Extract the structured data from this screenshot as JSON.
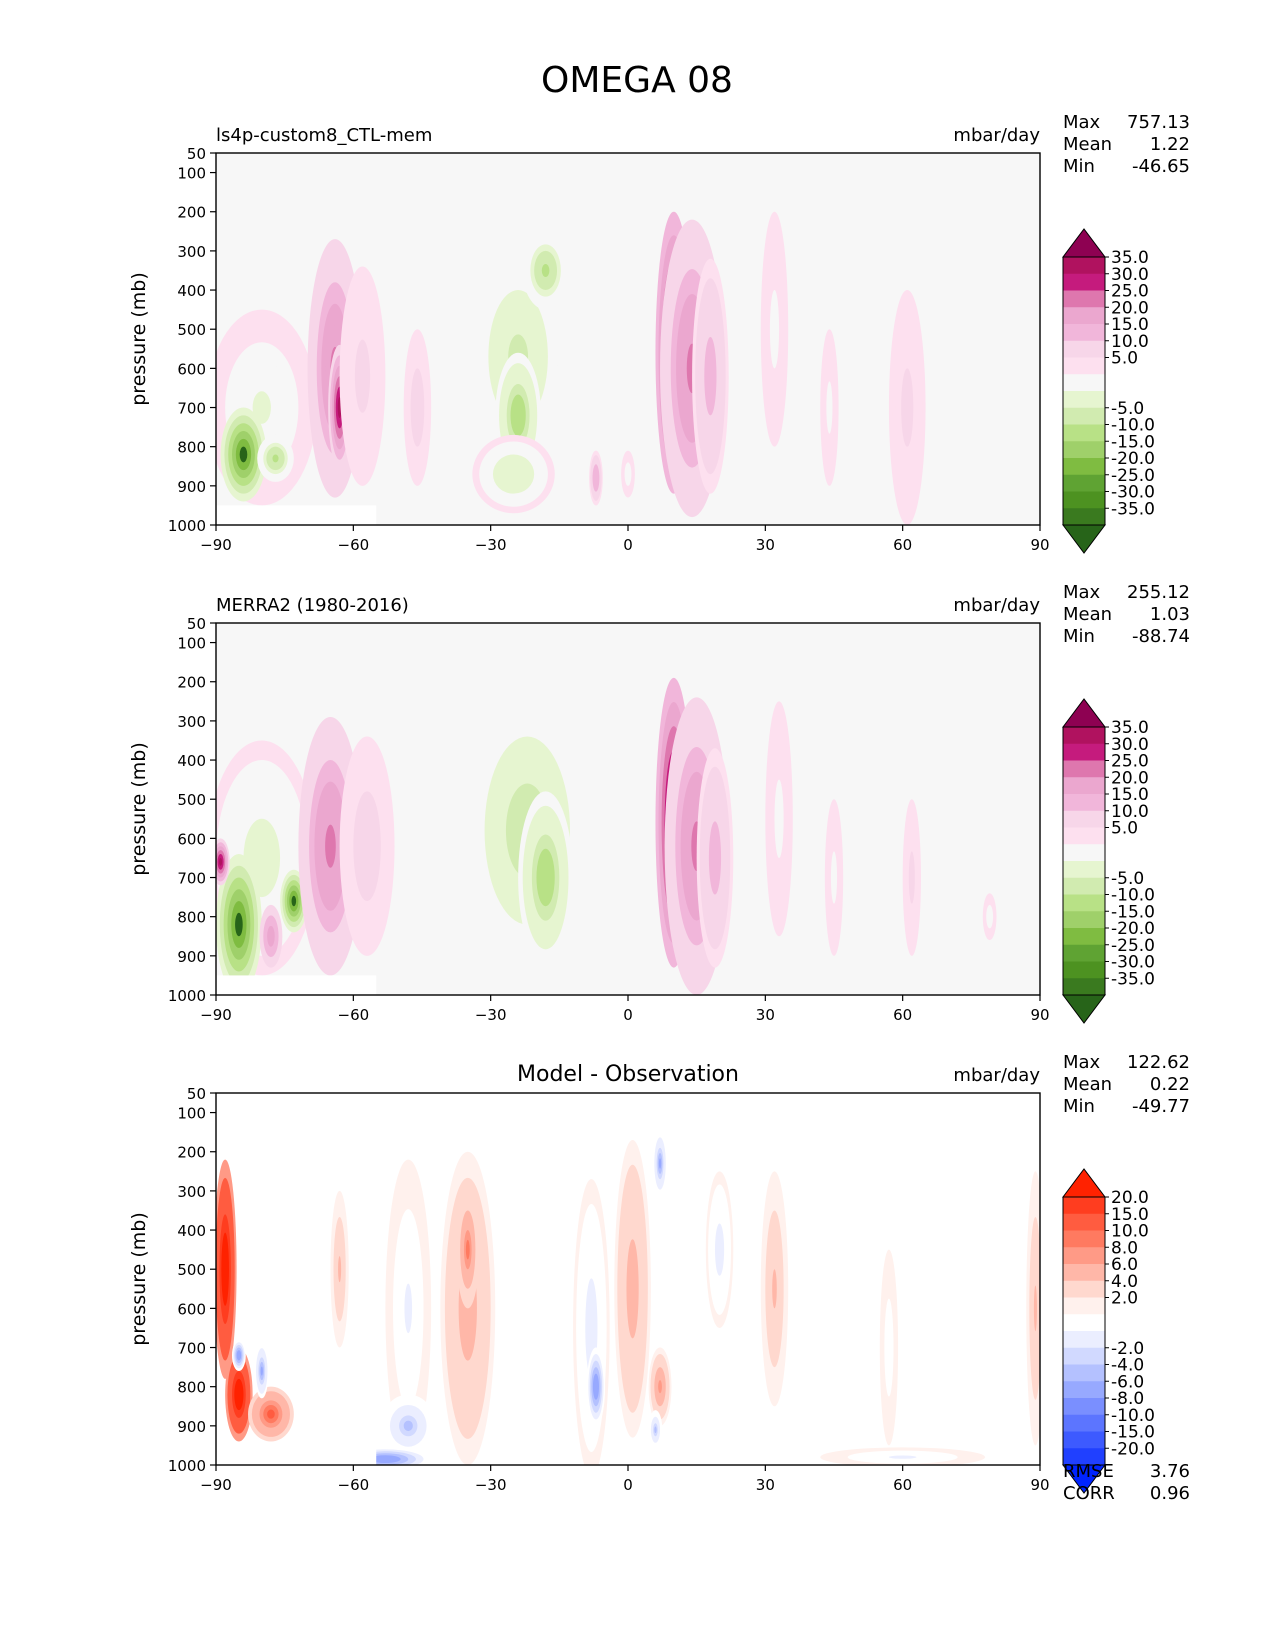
{
  "figure": {
    "title": "OMEGA 08"
  },
  "chart_data": [
    {
      "type": "heatmap",
      "panel": "test",
      "title": "",
      "subtitle_left": "ls4p-custom8_CTL-mem",
      "units": "mbar/day",
      "stats": [
        {
          "label": "Max",
          "value": "757.13"
        },
        {
          "label": "Mean",
          "value": "1.22"
        },
        {
          "label": "Min",
          "value": "-46.65"
        }
      ],
      "xlabel": "",
      "ylabel": "pressure (mb)",
      "x_ticks": [
        "−90",
        "−60",
        "−30",
        "0",
        "30",
        "60",
        "90"
      ],
      "xlim": [
        -90,
        90
      ],
      "y_ticks": [
        "50",
        "100",
        "200",
        "300",
        "400",
        "500",
        "600",
        "700",
        "800",
        "900",
        "1000"
      ],
      "ylim": [
        1000,
        50
      ],
      "colorbar": {
        "labels": [
          "35.0",
          "30.0",
          "25.0",
          "20.0",
          "15.0",
          "10.0",
          "5.0",
          "-5.0",
          "-10.0",
          "-15.0",
          "-20.0",
          "-25.0",
          "-30.0",
          "-35.0"
        ],
        "colors": [
          "#8e0152",
          "#b0125f",
          "#c51b7d",
          "#de77ae",
          "#eba7cf",
          "#f1b6da",
          "#f7d6e9",
          "#fde0ef",
          "#f7f7f7",
          "#e6f5d0",
          "#d1ebb0",
          "#b8e186",
          "#9fd06a",
          "#7fbc41",
          "#5fa333",
          "#4d9221",
          "#3a7a1f",
          "#276419"
        ]
      },
      "blobs": [
        {
          "lon": -80,
          "p": 700,
          "rlon": 12,
          "rp": 250,
          "value": -10
        },
        {
          "lon": -84,
          "p": 820,
          "rlon": 5,
          "rp": 120,
          "value": -40
        },
        {
          "lon": -77,
          "p": 830,
          "rlon": 4,
          "rp": 60,
          "value": -22
        },
        {
          "lon": -64,
          "p": 600,
          "rlon": 6,
          "rp": 330,
          "value": 22
        },
        {
          "lon": -63,
          "p": 700,
          "rlon": 2.5,
          "rp": 160,
          "value": 32
        },
        {
          "lon": -58,
          "p": 620,
          "rlon": 5,
          "rp": 280,
          "value": 6
        },
        {
          "lon": -24,
          "p": 570,
          "rlon": 13,
          "rp": 340,
          "value": -17
        },
        {
          "lon": -24,
          "p": 720,
          "rlon": 5,
          "rp": 160,
          "value": -24
        },
        {
          "lon": -18,
          "p": 350,
          "rlon": 5,
          "rp": 100,
          "value": -21
        },
        {
          "lon": -25,
          "p": 870,
          "rlon": 9,
          "rp": 100,
          "value": -14
        },
        {
          "lon": 10,
          "p": 560,
          "rlon": 4,
          "rp": 360,
          "value": 40
        },
        {
          "lon": 14,
          "p": 600,
          "rlon": 7,
          "rp": 380,
          "value": 22
        },
        {
          "lon": 18,
          "p": 620,
          "rlon": 4,
          "rp": 300,
          "value": 12
        },
        {
          "lon": -7,
          "p": 880,
          "rlon": 1.5,
          "rp": 70,
          "value": 14
        },
        {
          "lon": 0,
          "p": 870,
          "rlon": 1.5,
          "rp": 60,
          "value": -8
        },
        {
          "lon": 32,
          "p": 500,
          "rlon": 3,
          "rp": 300,
          "value": -6
        },
        {
          "lon": 44,
          "p": 700,
          "rlon": 2,
          "rp": 200,
          "value": -6
        },
        {
          "lon": 61,
          "p": 700,
          "rlon": 4,
          "rp": 300,
          "value": 6
        },
        {
          "lon": -46,
          "p": 700,
          "rlon": 3,
          "rp": 200,
          "value": 7
        }
      ]
    },
    {
      "type": "heatmap",
      "panel": "reference",
      "title": "",
      "subtitle_left": "MERRA2 (1980-2016)",
      "units": "mbar/day",
      "stats": [
        {
          "label": "Max",
          "value": "255.12"
        },
        {
          "label": "Mean",
          "value": "1.03"
        },
        {
          "label": "Min",
          "value": "-88.74"
        }
      ],
      "xlabel": "",
      "ylabel": "pressure (mb)",
      "x_ticks": [
        "−90",
        "−60",
        "−30",
        "0",
        "30",
        "60",
        "90"
      ],
      "xlim": [
        -90,
        90
      ],
      "y_ticks": [
        "50",
        "100",
        "200",
        "300",
        "400",
        "500",
        "600",
        "700",
        "800",
        "900",
        "1000"
      ],
      "ylim": [
        1000,
        50
      ],
      "colorbar": {
        "labels": [
          "35.0",
          "30.0",
          "25.0",
          "20.0",
          "15.0",
          "10.0",
          "5.0",
          "-5.0",
          "-10.0",
          "-15.0",
          "-20.0",
          "-25.0",
          "-30.0",
          "-35.0"
        ],
        "colors": [
          "#8e0152",
          "#b0125f",
          "#c51b7d",
          "#de77ae",
          "#eba7cf",
          "#f1b6da",
          "#f7d6e9",
          "#fde0ef",
          "#f7f7f7",
          "#e6f5d0",
          "#d1ebb0",
          "#b8e186",
          "#9fd06a",
          "#7fbc41",
          "#5fa333",
          "#4d9221",
          "#3a7a1f",
          "#276419"
        ]
      },
      "blobs": [
        {
          "lon": -80,
          "p": 650,
          "rlon": 12,
          "rp": 300,
          "value": -12
        },
        {
          "lon": -85,
          "p": 820,
          "rlon": 5,
          "rp": 180,
          "value": -40
        },
        {
          "lon": -73,
          "p": 760,
          "rlon": 3,
          "rp": 80,
          "value": -35
        },
        {
          "lon": -78,
          "p": 850,
          "rlon": 2.5,
          "rp": 80,
          "value": 18
        },
        {
          "lon": -89,
          "p": 660,
          "rlon": 2,
          "rp": 60,
          "value": 30
        },
        {
          "lon": -65,
          "p": 620,
          "rlon": 7,
          "rp": 330,
          "value": 22
        },
        {
          "lon": -57,
          "p": 620,
          "rlon": 6,
          "rp": 280,
          "value": 7
        },
        {
          "lon": -22,
          "p": 580,
          "rlon": 14,
          "rp": 360,
          "value": -18
        },
        {
          "lon": -18,
          "p": 700,
          "rlon": 6,
          "rp": 220,
          "value": -24
        },
        {
          "lon": 10,
          "p": 560,
          "rlon": 4,
          "rp": 370,
          "value": 40
        },
        {
          "lon": 15,
          "p": 620,
          "rlon": 7,
          "rp": 380,
          "value": 22
        },
        {
          "lon": 19,
          "p": 650,
          "rlon": 4,
          "rp": 280,
          "value": 12
        },
        {
          "lon": 33,
          "p": 550,
          "rlon": 3,
          "rp": 300,
          "value": -6
        },
        {
          "lon": 45,
          "p": 700,
          "rlon": 2,
          "rp": 200,
          "value": -6
        },
        {
          "lon": 62,
          "p": 700,
          "rlon": 2,
          "rp": 200,
          "value": 6
        },
        {
          "lon": 79,
          "p": 800,
          "rlon": 1.5,
          "rp": 60,
          "value": -7
        }
      ]
    },
    {
      "type": "heatmap",
      "panel": "difference",
      "title": "Model - Observation",
      "subtitle_left": "",
      "units": "mbar/day",
      "stats": [
        {
          "label": "Max",
          "value": "122.62"
        },
        {
          "label": "Mean",
          "value": "0.22"
        },
        {
          "label": "Min",
          "value": "-49.77"
        }
      ],
      "extra_stats": [
        {
          "label": "RMSE",
          "value": "3.76"
        },
        {
          "label": "CORR",
          "value": "0.96"
        }
      ],
      "xlabel": "",
      "ylabel": "pressure (mb)",
      "x_ticks": [
        "−90",
        "−60",
        "−30",
        "0",
        "30",
        "60",
        "90"
      ],
      "xlim": [
        -90,
        90
      ],
      "y_ticks": [
        "50",
        "100",
        "200",
        "300",
        "400",
        "500",
        "600",
        "700",
        "800",
        "900",
        "1000"
      ],
      "ylim": [
        1000,
        50
      ],
      "colorbar": {
        "labels": [
          "20.0",
          "15.0",
          "10.0",
          "8.0",
          "6.0",
          "4.0",
          "2.0",
          "-2.0",
          "-4.0",
          "-6.0",
          "-8.0",
          "-10.0",
          "-15.0",
          "-20.0"
        ],
        "colors": [
          "#ff2200",
          "#ff3d1f",
          "#ff5c40",
          "#ff7a60",
          "#ff9a86",
          "#ffb7a8",
          "#ffd8ce",
          "#fff1ed",
          "#ffffff",
          "#ebeeff",
          "#d1d9ff",
          "#b4c1ff",
          "#97a9ff",
          "#7a8fff",
          "#5c75ff",
          "#3d5aff",
          "#2040ff",
          "#0024ff"
        ]
      },
      "blobs": [
        {
          "lon": -88,
          "p": 500,
          "rlon": 2.5,
          "rp": 280,
          "value": 25
        },
        {
          "lon": -85,
          "p": 820,
          "rlon": 3,
          "rp": 120,
          "value": 25
        },
        {
          "lon": -78,
          "p": 870,
          "rlon": 5,
          "rp": 70,
          "value": 10
        },
        {
          "lon": -85,
          "p": 720,
          "rlon": 1.5,
          "rp": 40,
          "value": -12
        },
        {
          "lon": -80,
          "p": 760,
          "rlon": 1.5,
          "rp": 70,
          "value": -10
        },
        {
          "lon": -63,
          "p": 500,
          "rlon": 2,
          "rp": 200,
          "value": 4
        },
        {
          "lon": -48,
          "p": 600,
          "rlon": 5,
          "rp": 380,
          "value": -4
        },
        {
          "lon": -48,
          "p": 900,
          "rlon": 6,
          "rp": 80,
          "value": -8
        },
        {
          "lon": -53,
          "p": 985,
          "rlon": 10,
          "rp": 30,
          "value": -12
        },
        {
          "lon": -35,
          "p": 600,
          "rlon": 6,
          "rp": 400,
          "value": 5
        },
        {
          "lon": -35,
          "p": 450,
          "rlon": 2.5,
          "rp": 150,
          "value": 8
        },
        {
          "lon": -8,
          "p": 650,
          "rlon": 4,
          "rp": 380,
          "value": -5
        },
        {
          "lon": -7,
          "p": 800,
          "rlon": 2,
          "rp": 100,
          "value": -12
        },
        {
          "lon": 1,
          "p": 550,
          "rlon": 4,
          "rp": 380,
          "value": 5
        },
        {
          "lon": 7,
          "p": 230,
          "rlon": 1.5,
          "rp": 80,
          "value": -10
        },
        {
          "lon": 7,
          "p": 800,
          "rlon": 2.5,
          "rp": 100,
          "value": 6
        },
        {
          "lon": 6,
          "p": 910,
          "rlon": 1.5,
          "rp": 50,
          "value": -8
        },
        {
          "lon": 20,
          "p": 450,
          "rlon": 3,
          "rp": 200,
          "value": -5
        },
        {
          "lon": 32,
          "p": 550,
          "rlon": 3,
          "rp": 300,
          "value": 4
        },
        {
          "lon": 60,
          "p": 980,
          "rlon": 18,
          "rp": 25,
          "value": -4
        },
        {
          "lon": 57,
          "p": 700,
          "rlon": 2,
          "rp": 250,
          "value": -3
        },
        {
          "lon": 89,
          "p": 600,
          "rlon": 2,
          "rp": 350,
          "value": 4
        }
      ]
    }
  ]
}
